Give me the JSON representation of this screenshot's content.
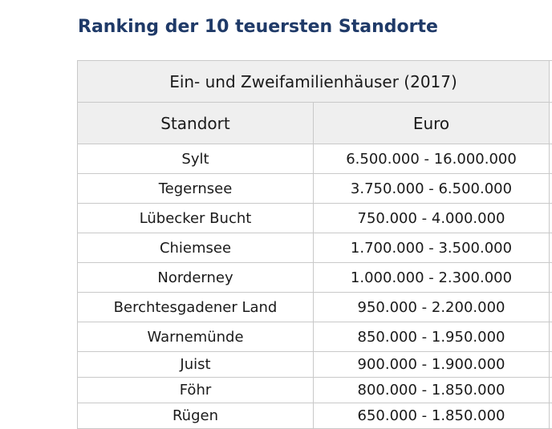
{
  "title": "Ranking der 10 teuersten Standorte",
  "table": {
    "group_header": "Ein- und Zweifamilienhäuser (2017)",
    "columns": [
      "Standort",
      "Euro"
    ],
    "rows": [
      {
        "standort": "Sylt",
        "euro": "6.500.000 - 16.000.000"
      },
      {
        "standort": "Tegernsee",
        "euro": "3.750.000 - 6.500.000"
      },
      {
        "standort": "Lübecker Bucht",
        "euro": "750.000 - 4.000.000"
      },
      {
        "standort": "Chiemsee",
        "euro": "1.700.000 - 3.500.000"
      },
      {
        "standort": "Norderney",
        "euro": "1.000.000 - 2.300.000"
      },
      {
        "standort": "Berchtesgadener Land",
        "euro": "950.000 - 2.200.000"
      },
      {
        "standort": "Warnemünde",
        "euro": "850.000 - 1.950.000"
      },
      {
        "standort": "Juist",
        "euro": "900.000 - 1.900.000"
      },
      {
        "standort": "Föhr",
        "euro": "800.000 - 1.850.000"
      },
      {
        "standort": "Rügen",
        "euro": "650.000 - 1.850.000"
      }
    ]
  },
  "colors": {
    "title": "#1f3a68",
    "header_background": "#efefef",
    "border": "#c9c9c9"
  }
}
